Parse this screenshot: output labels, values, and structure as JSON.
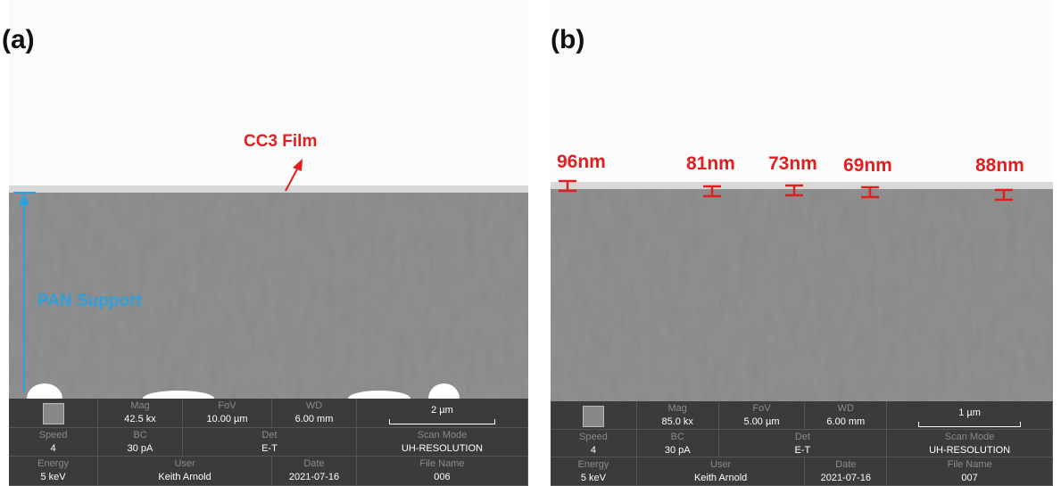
{
  "panels": [
    {
      "label": "(a)",
      "annotations": [
        "CC3 Film",
        "PAN Support"
      ],
      "info": {
        "scale_bar": "2 µm",
        "cells": [
          {
            "label": "Mag",
            "value": "42.5 kx"
          },
          {
            "label": "FoV",
            "value": "10.00 µm"
          },
          {
            "label": "WD",
            "value": "6.00 mm"
          },
          {
            "label": "Speed",
            "value": "4"
          },
          {
            "label": "BC",
            "value": "30 pA"
          },
          {
            "label": "Det",
            "value": "E-T"
          },
          {
            "label": "Scan Mode",
            "value": "UH-RESOLUTION"
          },
          {
            "label": "Energy",
            "value": "5 keV"
          },
          {
            "label": "User",
            "value": "Keith Arnold"
          },
          {
            "label": "Date",
            "value": "2021-07-16"
          },
          {
            "label": "File Name",
            "value": "006"
          }
        ]
      }
    },
    {
      "label": "(b)",
      "annotations": [
        "96nm",
        "81nm",
        "73nm",
        "69nm",
        "88nm"
      ],
      "info": {
        "scale_bar": "1 µm",
        "cells": [
          {
            "label": "Mag",
            "value": "85.0 kx"
          },
          {
            "label": "FoV",
            "value": "5.00 µm"
          },
          {
            "label": "WD",
            "value": "6.00 mm"
          },
          {
            "label": "Speed",
            "value": "4"
          },
          {
            "label": "BC",
            "value": "30 pA"
          },
          {
            "label": "Det",
            "value": "E-T"
          },
          {
            "label": "Scan Mode",
            "value": "UH-RESOLUTION"
          },
          {
            "label": "Energy",
            "value": "5 keV"
          },
          {
            "label": "User",
            "value": "Keith Arnold"
          },
          {
            "label": "Date",
            "value": "2021-07-16"
          },
          {
            "label": "File Name",
            "value": "007"
          }
        ]
      }
    }
  ]
}
